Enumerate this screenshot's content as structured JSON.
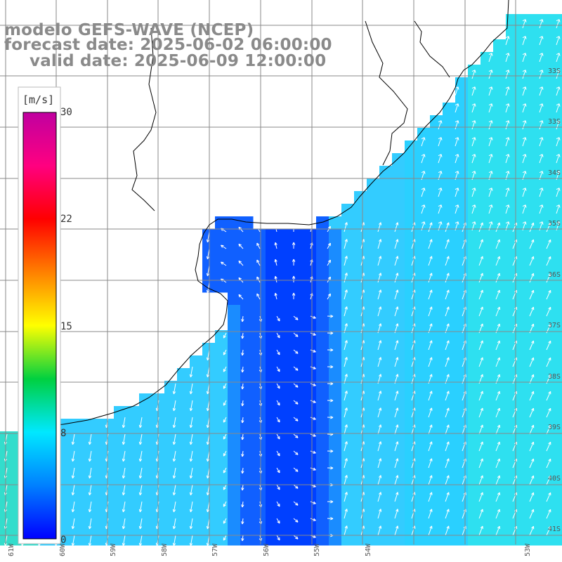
{
  "title": {
    "line1": "modelo GEFS-WAVE (NCEP)",
    "line2": "forecast date: 2025-06-02 06:00:00",
    "line3": "valid date: 2025-06-09 12:00:00"
  },
  "colorbar": {
    "units": "[m/s]",
    "ticks": [
      "30",
      "22",
      "15",
      "8",
      "0"
    ],
    "colors": [
      "#0000ff",
      "#0080ff",
      "#00e8ff",
      "#00d040",
      "#ffff00",
      "#ff8000",
      "#ff0000",
      "#ff0080",
      "#c000a0"
    ]
  },
  "lat_labels": [
    "33S",
    "34S",
    "35S",
    "36S",
    "37S",
    "38S",
    "39S",
    "40S",
    "41S"
  ],
  "lon_labels": [
    "61W",
    "60W",
    "59W",
    "58W",
    "57W",
    "56W",
    "55W",
    "54W",
    "53W"
  ],
  "colors": {
    "ocean_light": "#33ccff",
    "ocean_mid": "#1a8cff",
    "ocean_deep": "#0040ff",
    "land": "#ffffff",
    "coast": "#000000",
    "grid": "#888888",
    "arrow": "#ffffff"
  }
}
